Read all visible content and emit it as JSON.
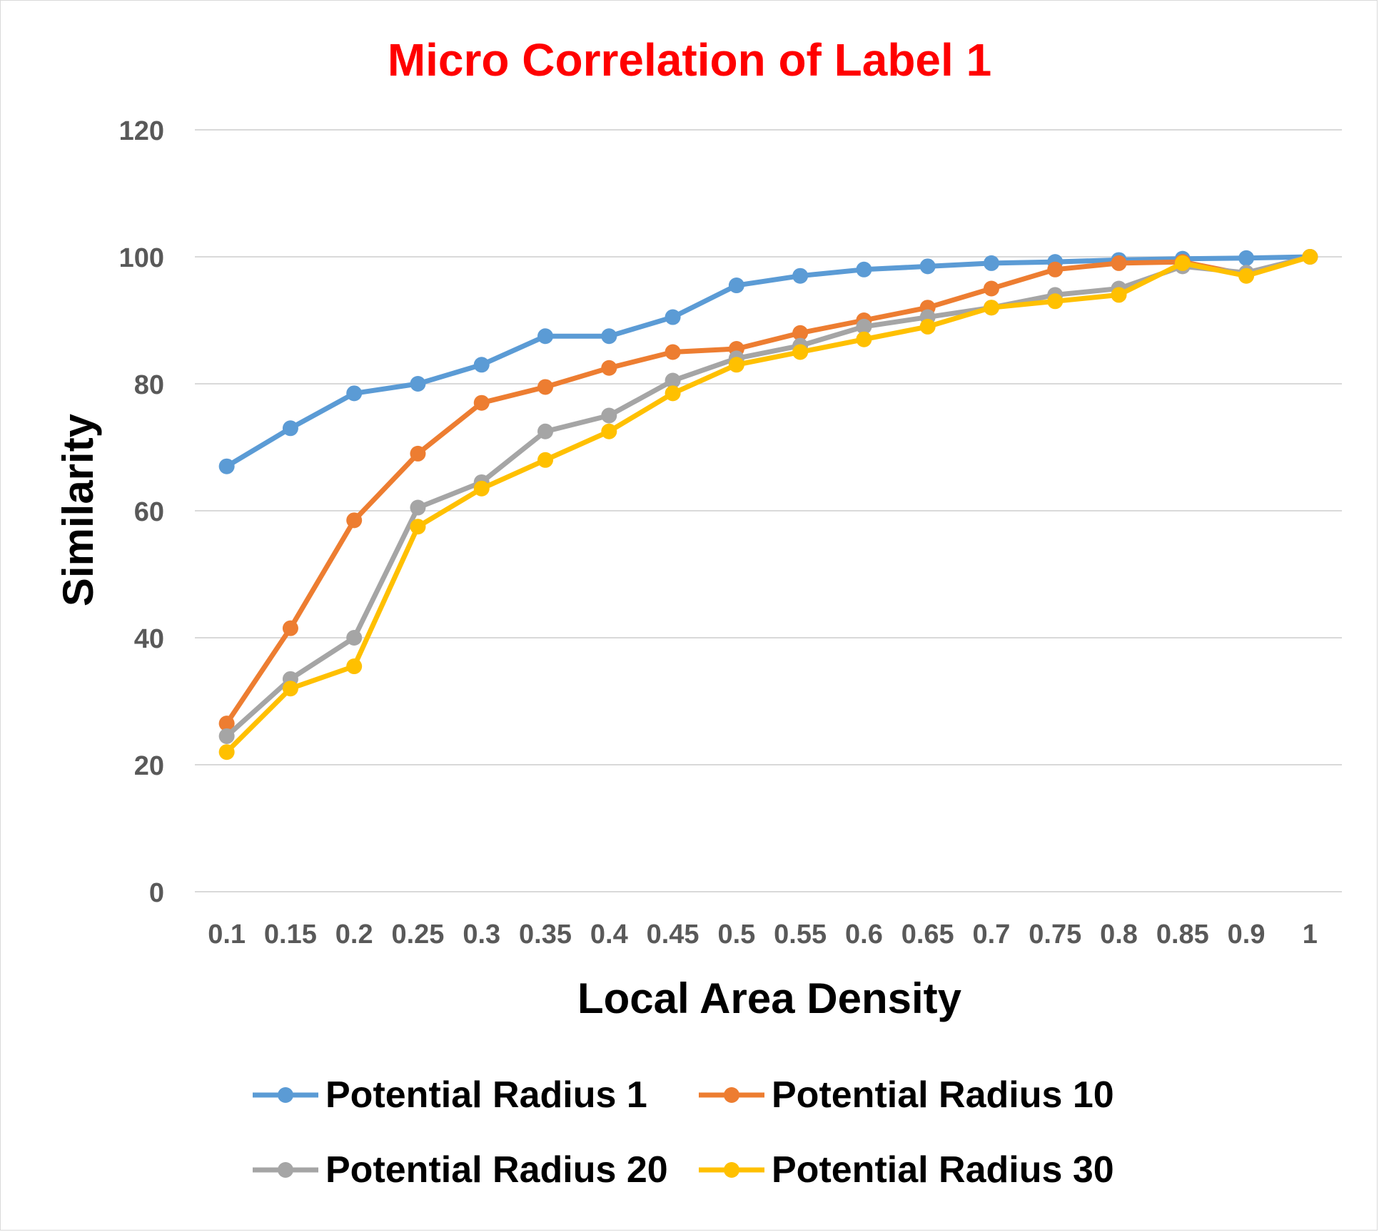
{
  "chart_data": {
    "type": "line",
    "title": "Micro Correlation of Label 1",
    "xlabel": "Local Area Density",
    "ylabel": "Similarity",
    "categories": [
      "0.1",
      "0.15",
      "0.2",
      "0.25",
      "0.3",
      "0.35",
      "0.4",
      "0.45",
      "0.5",
      "0.55",
      "0.6",
      "0.65",
      "0.7",
      "0.75",
      "0.8",
      "0.85",
      "0.9",
      "1"
    ],
    "ylim": [
      0,
      120
    ],
    "yticks": [
      "0",
      "20",
      "40",
      "60",
      "80",
      "100",
      "120"
    ],
    "grid": true,
    "legend_position": "bottom",
    "series": [
      {
        "name": "Potential Radius 1",
        "color": "#5b9bd5",
        "values": [
          67,
          73,
          78.5,
          80,
          83,
          87.5,
          87.5,
          90.5,
          95.5,
          97,
          98,
          98.5,
          99,
          99.2,
          99.5,
          99.7,
          99.8,
          100
        ]
      },
      {
        "name": "Potential Radius 10",
        "color": "#ed7d31",
        "values": [
          26.5,
          41.5,
          58.5,
          69,
          77,
          79.5,
          82.5,
          85,
          85.5,
          88,
          90,
          92,
          95,
          98,
          99,
          99.2,
          97.2,
          100
        ]
      },
      {
        "name": "Potential Radius 20",
        "color": "#a5a5a5",
        "values": [
          24.5,
          33.5,
          40,
          60.5,
          64.5,
          72.5,
          75,
          80.5,
          84,
          86,
          89,
          90.5,
          92,
          94,
          95,
          98.5,
          97.5,
          100
        ]
      },
      {
        "name": "Potential Radius 30",
        "color": "#ffc000",
        "values": [
          22,
          32,
          35.5,
          57.5,
          63.5,
          68,
          72.5,
          78.5,
          83,
          85,
          87,
          89,
          92,
          93,
          94,
          99,
          97,
          100
        ]
      }
    ]
  }
}
